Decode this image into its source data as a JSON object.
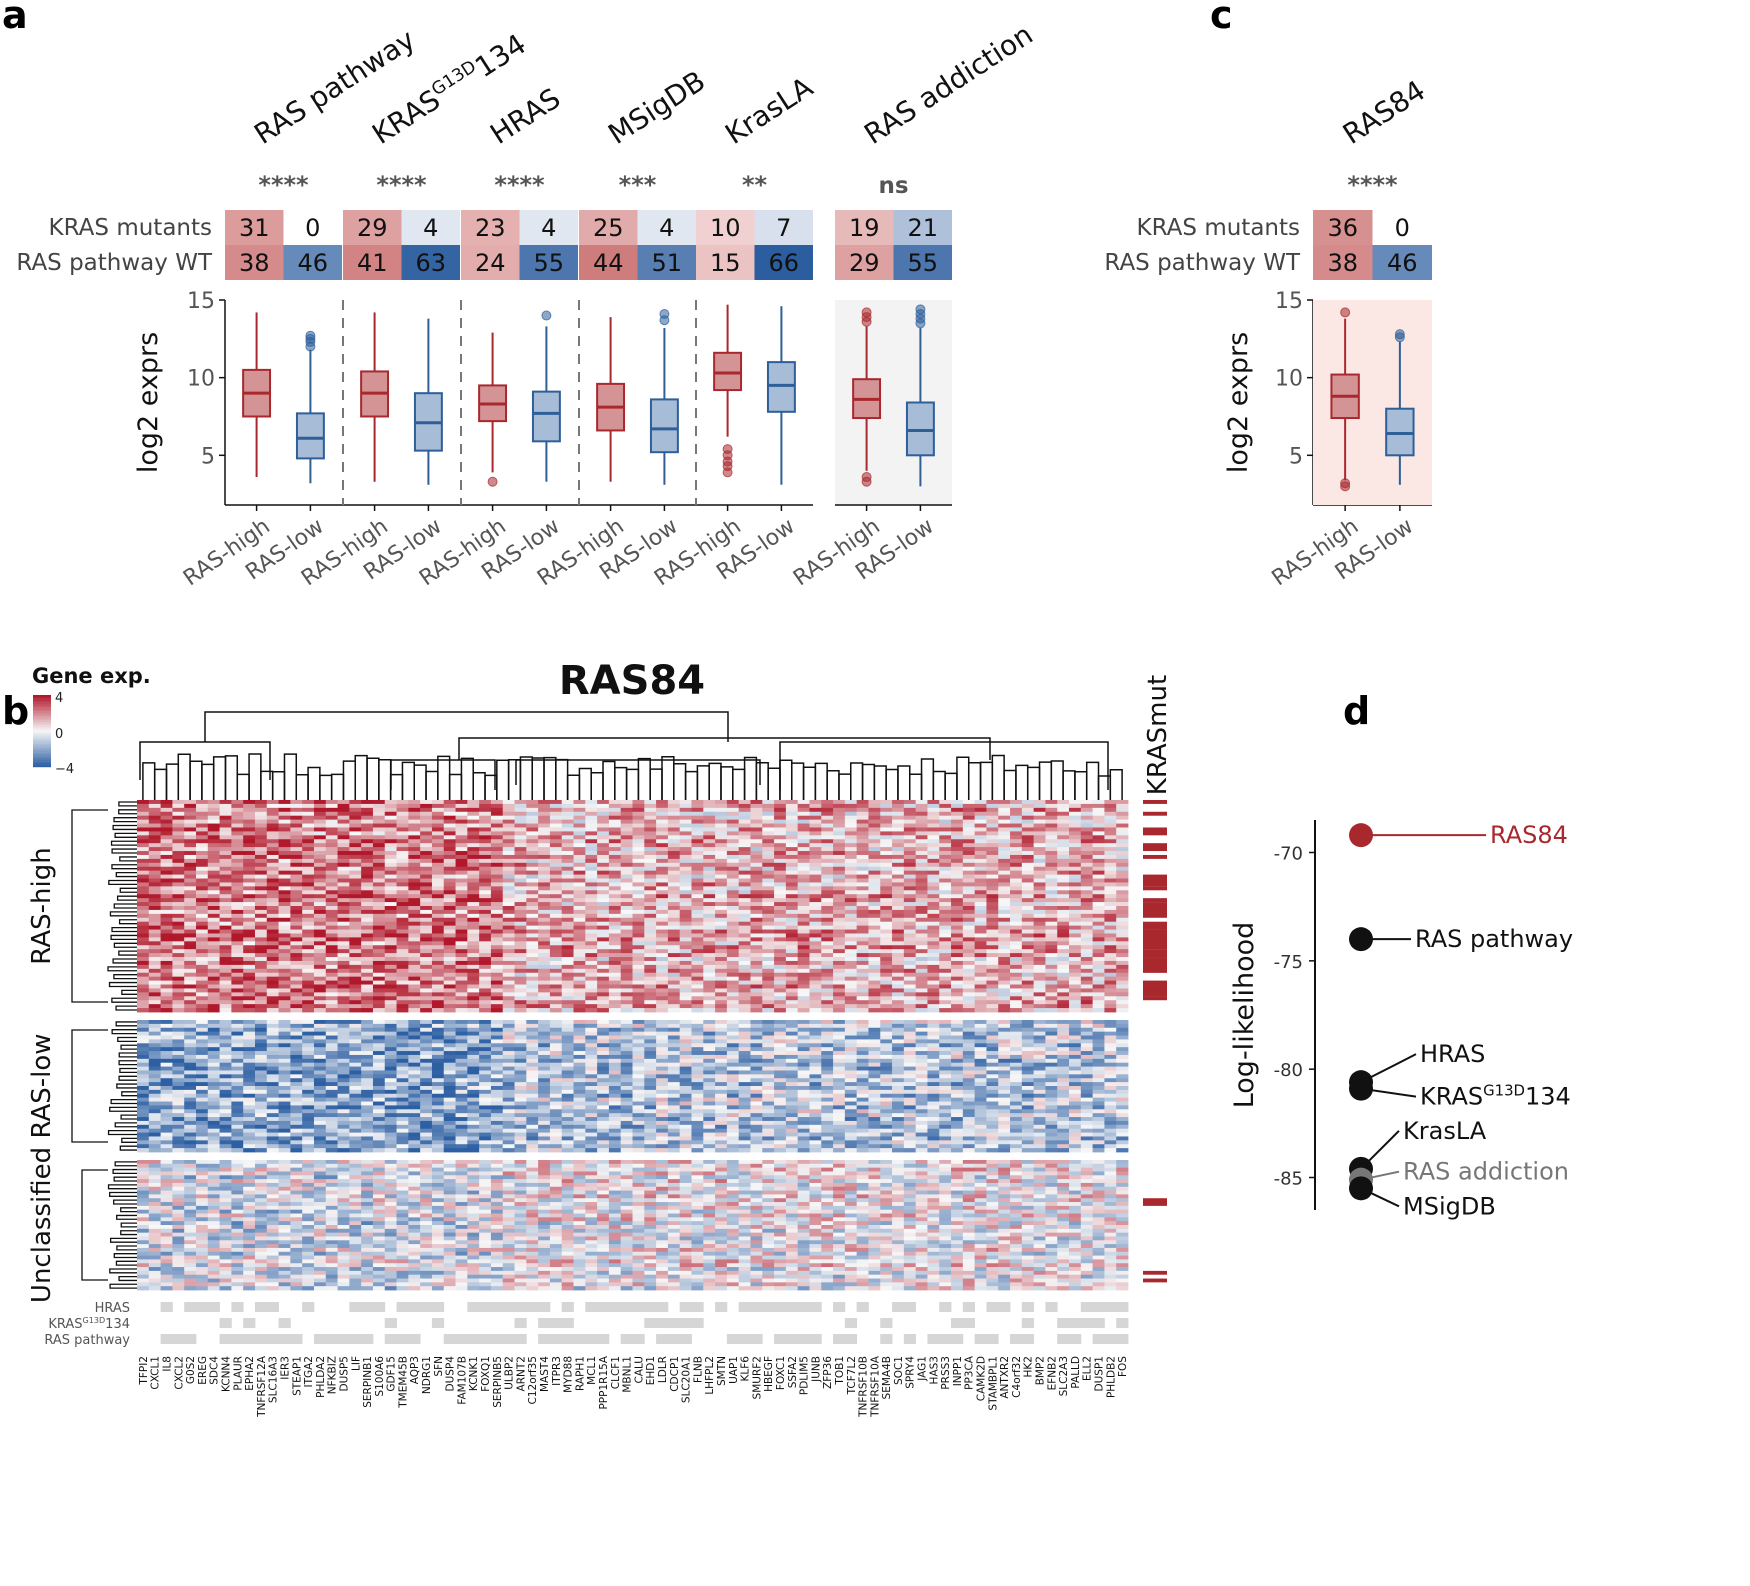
{
  "panel_labels": [
    "a",
    "b",
    "c",
    "d"
  ],
  "chart_data": [
    {
      "panel": "a",
      "type": "box",
      "ylabel": "log2 exprs",
      "ylim": [
        1.8,
        15
      ],
      "yticks": [
        5,
        10,
        15
      ],
      "row_labels": [
        "KRAS mutants",
        "RAS pathway WT"
      ],
      "groups": [
        "RAS-high",
        "RAS-low"
      ],
      "signatures": [
        {
          "name": "RAS pathway",
          "sig": "****",
          "counts": [
            [
              31,
              0
            ],
            [
              38,
              46
            ]
          ],
          "boxes": [
            {
              "min": 3.6,
              "q1": 7.5,
              "med": 9.0,
              "q3": 10.5,
              "max": 14.2,
              "out": []
            },
            {
              "min": 3.2,
              "q1": 4.8,
              "med": 6.1,
              "q3": 7.7,
              "max": 11.8,
              "out": [
                12.0,
                12.3,
                12.5,
                12.7
              ]
            }
          ]
        },
        {
          "name": "KRASG13D134",
          "sig": "****",
          "counts": [
            [
              29,
              4
            ],
            [
              41,
              63
            ]
          ],
          "boxes": [
            {
              "min": 3.3,
              "q1": 7.5,
              "med": 9.0,
              "q3": 10.4,
              "max": 14.2,
              "out": []
            },
            {
              "min": 3.1,
              "q1": 5.3,
              "med": 7.1,
              "q3": 9.0,
              "max": 13.8,
              "out": []
            }
          ]
        },
        {
          "name": "HRAS",
          "sig": "****",
          "counts": [
            [
              23,
              4
            ],
            [
              24,
              55
            ]
          ],
          "boxes": [
            {
              "min": 3.9,
              "q1": 7.2,
              "med": 8.3,
              "q3": 9.5,
              "max": 12.9,
              "out": [
                3.3
              ]
            },
            {
              "min": 3.3,
              "q1": 5.9,
              "med": 7.7,
              "q3": 9.1,
              "max": 13.3,
              "out": [
                14.0
              ]
            }
          ]
        },
        {
          "name": "MSigDB",
          "sig": "***",
          "counts": [
            [
              25,
              4
            ],
            [
              44,
              51
            ]
          ],
          "boxes": [
            {
              "min": 3.3,
              "q1": 6.6,
              "med": 8.1,
              "q3": 9.6,
              "max": 13.9,
              "out": []
            },
            {
              "min": 3.1,
              "q1": 5.2,
              "med": 6.7,
              "q3": 8.6,
              "max": 13.2,
              "out": [
                13.7,
                14.1
              ]
            }
          ]
        },
        {
          "name": "KrasLA",
          "sig": "**",
          "counts": [
            [
              10,
              7
            ],
            [
              15,
              66
            ]
          ],
          "boxes": [
            {
              "min": 6.2,
              "q1": 9.2,
              "med": 10.3,
              "q3": 11.6,
              "max": 14.7,
              "out": [
                5.4,
                5.0,
                4.6,
                4.3,
                3.9
              ]
            },
            {
              "min": 3.1,
              "q1": 7.8,
              "med": 9.5,
              "q3": 11.0,
              "max": 14.6,
              "out": []
            }
          ]
        },
        {
          "name": "RAS addiction",
          "sig": "ns",
          "counts": [
            [
              19,
              21
            ],
            [
              29,
              55
            ]
          ],
          "boxes": [
            {
              "min": 4.0,
              "q1": 7.4,
              "med": 8.6,
              "q3": 9.9,
              "max": 13.3,
              "out": [
                13.6,
                13.9,
                14.2,
                3.6,
                3.3
              ]
            },
            {
              "min": 3.0,
              "q1": 5.0,
              "med": 6.6,
              "q3": 8.4,
              "max": 13.2,
              "out": [
                13.5,
                13.8,
                14.1,
                14.4
              ]
            }
          ]
        }
      ]
    },
    {
      "panel": "c",
      "type": "box",
      "ylabel": "log2 exprs",
      "ylim": [
        1.8,
        15
      ],
      "yticks": [
        5,
        10,
        15
      ],
      "row_labels": [
        "KRAS mutants",
        "RAS pathway WT"
      ],
      "groups": [
        "RAS-high",
        "RAS-low"
      ],
      "signatures": [
        {
          "name": "RAS84",
          "sig": "****",
          "counts": [
            [
              36,
              0
            ],
            [
              38,
              46
            ]
          ],
          "boxes": [
            {
              "min": 3.4,
              "q1": 7.4,
              "med": 8.8,
              "q3": 10.2,
              "max": 13.8,
              "out": [
                14.2,
                3.2,
                3.0
              ]
            },
            {
              "min": 3.1,
              "q1": 5.0,
              "med": 6.4,
              "q3": 8.0,
              "max": 12.3,
              "out": [
                12.6,
                12.8
              ]
            }
          ]
        }
      ]
    },
    {
      "panel": "b",
      "type": "heatmap",
      "title": "RAS84",
      "legend_title": "Gene exp.",
      "legend_ticks": [
        "4",
        "0",
        "−4"
      ],
      "side_label": "KRASmut",
      "row_groups": [
        "RAS-high",
        "RAS-low",
        "Unclassified"
      ],
      "annotation_rows": [
        "HRAS",
        "KRASG13D134",
        "RAS pathway"
      ],
      "genes": [
        "TFPI2",
        "CXCL1",
        "IL8",
        "CXCL2",
        "G0S2",
        "EREG",
        "SDC4",
        "KCNN4",
        "PLAUR",
        "EPHA2",
        "TNFRSF12A",
        "SLC16A3",
        "IER3",
        "STEAP1",
        "ITGA2",
        "PHLDA2",
        "NFKBIZ",
        "DUSP5",
        "LIF",
        "SERPINB1",
        "S100A6",
        "GDF15",
        "TMEM45B",
        "AQP3",
        "NDRG1",
        "SFN",
        "DUSP4",
        "FAM107B",
        "KCNK1",
        "FOXQ1",
        "SERPINB5",
        "ULBP2",
        "ARNT2",
        "C12orf35",
        "MAST4",
        "ITPR3",
        "MYD88",
        "RAPH1",
        "MCL1",
        "PPP1R15A",
        "CLCF1",
        "MBNL1",
        "CALU",
        "EHD1",
        "LDLR",
        "CDCP1",
        "SLC20A1",
        "FLNB",
        "LHFPL2",
        "SMTN",
        "UAP1",
        "KLF6",
        "SMURF2",
        "HBEGF",
        "FOXC1",
        "SSFA2",
        "PDLIM5",
        "JUNB",
        "ZFP36",
        "TOB1",
        "TCF7L2",
        "TNFRSF10B",
        "TNFRSF10A",
        "SEMA4B",
        "SOC1",
        "SPRY4",
        "JAG1",
        "HAS3",
        "PRSS3",
        "INPP1",
        "PP3CA",
        "CAMK2D",
        "STAMBPL1",
        "ANTXR2",
        "C4orf32",
        "HK2",
        "BMP2",
        "EFNB2",
        "SLC2A3",
        "PALLD",
        "ELL2",
        "DUSP1",
        "PHLDB2",
        "FOS"
      ]
    },
    {
      "panel": "d",
      "type": "scatter",
      "ylabel": "Log-likelihood",
      "ylim": [
        -86.5,
        -68.5
      ],
      "yticks": [
        -70,
        -75,
        -80,
        -85
      ],
      "points": [
        {
          "name": "RAS84",
          "y": -69.2,
          "highlight": true
        },
        {
          "name": "RAS pathway",
          "y": -74.0
        },
        {
          "name": "HRAS",
          "y": -80.6
        },
        {
          "name": "KRASG13D134",
          "y": -80.9
        },
        {
          "name": "KrasLA",
          "y": -84.6
        },
        {
          "name": "RAS addiction",
          "y": -85.1,
          "grey": true
        },
        {
          "name": "MSigDB",
          "y": -85.5
        }
      ]
    }
  ],
  "colors": {
    "red": "#a8282d",
    "red_fill": "#d49496",
    "blue": "#2e5f99",
    "blue_fill": "#a6bcd7",
    "heat_high": "#b1182b",
    "heat_low": "#2d5fa3",
    "annotation_grey": "#d6d6d6",
    "ras84_panel_bg": "#fbe8e4",
    "ras_addiction_bg": "#f3f3f3"
  }
}
